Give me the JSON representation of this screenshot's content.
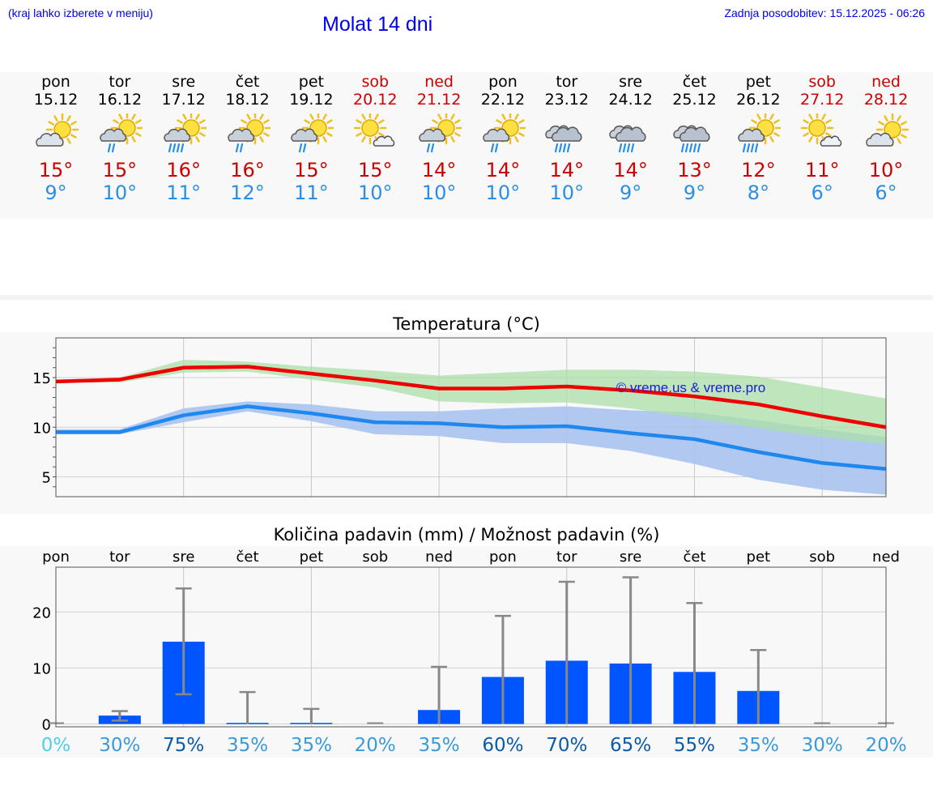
{
  "header": {
    "city_hint": "(kraj lahko izberete v meniju)",
    "title": "Molat 14 dni",
    "updated": "Zadnja posodobitev: 15.12.2025 - 06:26"
  },
  "days": [
    {
      "name": "pon",
      "date": "15.12",
      "weekend": false,
      "icon": "partly-cloudy-sun-icon",
      "tmax": "15°",
      "tmin": "9°"
    },
    {
      "name": "tor",
      "date": "16.12",
      "weekend": false,
      "icon": "sun-cloud-rain-icon",
      "tmax": "15°",
      "tmin": "10°"
    },
    {
      "name": "sre",
      "date": "17.12",
      "weekend": false,
      "icon": "sun-cloud-heavy-rain-icon",
      "tmax": "16°",
      "tmin": "11°"
    },
    {
      "name": "čet",
      "date": "18.12",
      "weekend": false,
      "icon": "sun-cloud-rain-icon",
      "tmax": "16°",
      "tmin": "12°"
    },
    {
      "name": "pet",
      "date": "19.12",
      "weekend": false,
      "icon": "sun-cloud-rain-icon",
      "tmax": "15°",
      "tmin": "11°"
    },
    {
      "name": "sob",
      "date": "20.12",
      "weekend": true,
      "icon": "sun-small-cloud-icon",
      "tmax": "15°",
      "tmin": "10°"
    },
    {
      "name": "ned",
      "date": "21.12",
      "weekend": true,
      "icon": "sun-cloud-rain-icon",
      "tmax": "14°",
      "tmin": "10°"
    },
    {
      "name": "pon",
      "date": "22.12",
      "weekend": false,
      "icon": "sun-cloud-rain-icon",
      "tmax": "14°",
      "tmin": "10°"
    },
    {
      "name": "tor",
      "date": "23.12",
      "weekend": false,
      "icon": "cloud-rain-icon",
      "tmax": "14°",
      "tmin": "10°"
    },
    {
      "name": "sre",
      "date": "24.12",
      "weekend": false,
      "icon": "cloud-rain-icon",
      "tmax": "14°",
      "tmin": "9°"
    },
    {
      "name": "čet",
      "date": "25.12",
      "weekend": false,
      "icon": "cloud-heavy-rain-icon",
      "tmax": "13°",
      "tmin": "9°"
    },
    {
      "name": "pet",
      "date": "26.12",
      "weekend": false,
      "icon": "sun-cloud-heavy-rain-icon",
      "tmax": "12°",
      "tmin": "8°"
    },
    {
      "name": "sob",
      "date": "27.12",
      "weekend": true,
      "icon": "sun-small-cloud-icon",
      "tmax": "11°",
      "tmin": "6°"
    },
    {
      "name": "ned",
      "date": "28.12",
      "weekend": true,
      "icon": "partly-cloudy-sun-icon",
      "tmax": "10°",
      "tmin": "6°"
    }
  ],
  "colors": {
    "max_line": "#ee0000",
    "max_band": "#acdfa8",
    "min_line": "#1e88ee",
    "min_band": "#a9c3f0",
    "overlap_band": "#7cc0ac",
    "bar": "#0055ff",
    "whisker": "#888888",
    "weekend": "#cc0000",
    "pct_low": "#4dd0e8",
    "pct_mid": "#3a9ad8",
    "pct_high": "#0a5aa8"
  },
  "chart_data": [
    {
      "type": "line",
      "title": "Temperatura (°C)",
      "watermark": "© vreme.us & vreme.pro",
      "x": [
        0,
        1,
        2,
        3,
        4,
        5,
        6,
        7,
        8,
        9,
        10,
        11,
        12,
        13
      ],
      "ylim": [
        3,
        19
      ],
      "yticks": [
        5,
        10,
        15
      ],
      "series": [
        {
          "name": "max",
          "values": [
            14.6,
            14.8,
            16.0,
            16.1,
            15.4,
            14.7,
            13.9,
            13.9,
            14.1,
            13.7,
            13.1,
            12.3,
            11.1,
            10.0
          ],
          "band_low": [
            14.5,
            14.5,
            15.5,
            15.6,
            14.8,
            14.0,
            12.6,
            12.4,
            12.5,
            11.9,
            10.9,
            9.9,
            9.0,
            8.3
          ],
          "band_high": [
            14.8,
            15.0,
            16.8,
            16.6,
            16.1,
            15.7,
            15.2,
            15.5,
            15.8,
            15.8,
            15.6,
            15.1,
            14.0,
            12.9
          ]
        },
        {
          "name": "min",
          "values": [
            9.5,
            9.5,
            11.2,
            12.1,
            11.4,
            10.5,
            10.4,
            10.0,
            10.1,
            9.4,
            8.8,
            7.5,
            6.4,
            5.8
          ],
          "band_low": [
            9.3,
            9.3,
            10.5,
            11.6,
            10.6,
            9.3,
            9.1,
            8.4,
            8.4,
            7.6,
            6.3,
            4.7,
            3.7,
            3.2
          ],
          "band_high": [
            9.8,
            9.8,
            11.9,
            12.6,
            12.3,
            11.6,
            11.6,
            11.9,
            12.1,
            11.7,
            11.5,
            10.7,
            9.8,
            9.0
          ]
        }
      ]
    },
    {
      "type": "bar",
      "title": "Količina padavin (mm) / Možnost padavin (%)",
      "categories": [
        "pon",
        "tor",
        "sre",
        "čet",
        "pet",
        "sob",
        "ned",
        "pon",
        "tor",
        "sre",
        "čet",
        "pet",
        "sob",
        "ned"
      ],
      "values": [
        0,
        1.5,
        14.7,
        0.2,
        0.2,
        0,
        2.5,
        8.4,
        11.3,
        10.8,
        9.3,
        5.9,
        0,
        0
      ],
      "err_low": [
        0,
        0.6,
        5.3,
        0,
        0,
        0,
        0,
        0,
        0,
        0,
        0,
        0,
        0,
        0
      ],
      "err_high": [
        0,
        2.3,
        24.2,
        5.7,
        2.7,
        0,
        10.2,
        19.3,
        25.4,
        26.2,
        21.6,
        13.2,
        0,
        0
      ],
      "percent": [
        "0%",
        "30%",
        "75%",
        "35%",
        "35%",
        "20%",
        "35%",
        "60%",
        "70%",
        "65%",
        "55%",
        "35%",
        "30%",
        "20%"
      ],
      "percent_level": [
        "low",
        "mid",
        "high",
        "mid",
        "mid",
        "mid",
        "mid",
        "high",
        "high",
        "high",
        "high",
        "mid",
        "mid",
        "mid"
      ],
      "ylim": [
        -0.5,
        28
      ],
      "yticks": [
        0,
        10,
        20
      ],
      "ylabel": "mm"
    }
  ]
}
